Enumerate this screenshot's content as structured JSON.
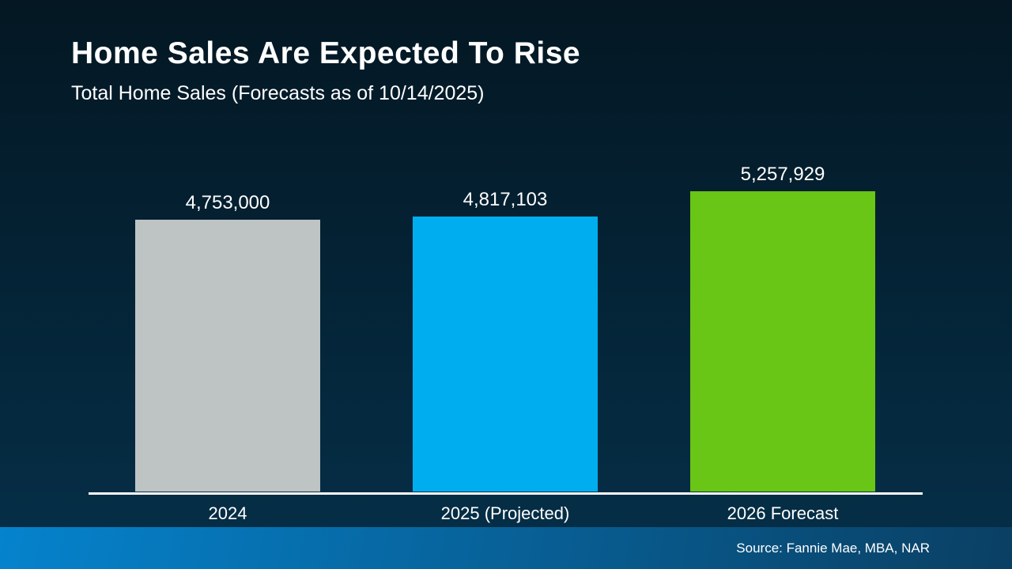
{
  "slide": {
    "title": "Home Sales Are Expected To Rise",
    "subtitle": "Total Home Sales (Forecasts as of 10/14/2025)",
    "source": "Source: Fannie Mae, MBA, NAR"
  },
  "colors": {
    "background_top": "#041723",
    "background_bottom": "#053049",
    "footer_left": "#0583cd",
    "footer_right": "#0a3f63",
    "axis": "#ffffff",
    "text": "#ffffff"
  },
  "chart_data": {
    "type": "bar",
    "title": "Home Sales Are Expected To Rise",
    "subtitle": "Total Home Sales (Forecasts as of 10/14/2025)",
    "categories": [
      "2024",
      "2025 (Projected)",
      "2026 Forecast"
    ],
    "values": [
      4753000,
      4817103,
      5257929
    ],
    "value_labels": [
      "4,753,000",
      "4,817,103",
      "5,257,929"
    ],
    "bar_colors": [
      "#bec3c4",
      "#00aeef",
      "#69c516"
    ],
    "xlabel": "",
    "ylabel": "",
    "ylim": [
      0,
      5257929
    ],
    "grid": false,
    "legend": false,
    "annotation": "Source: Fannie Mae, MBA, NAR"
  }
}
